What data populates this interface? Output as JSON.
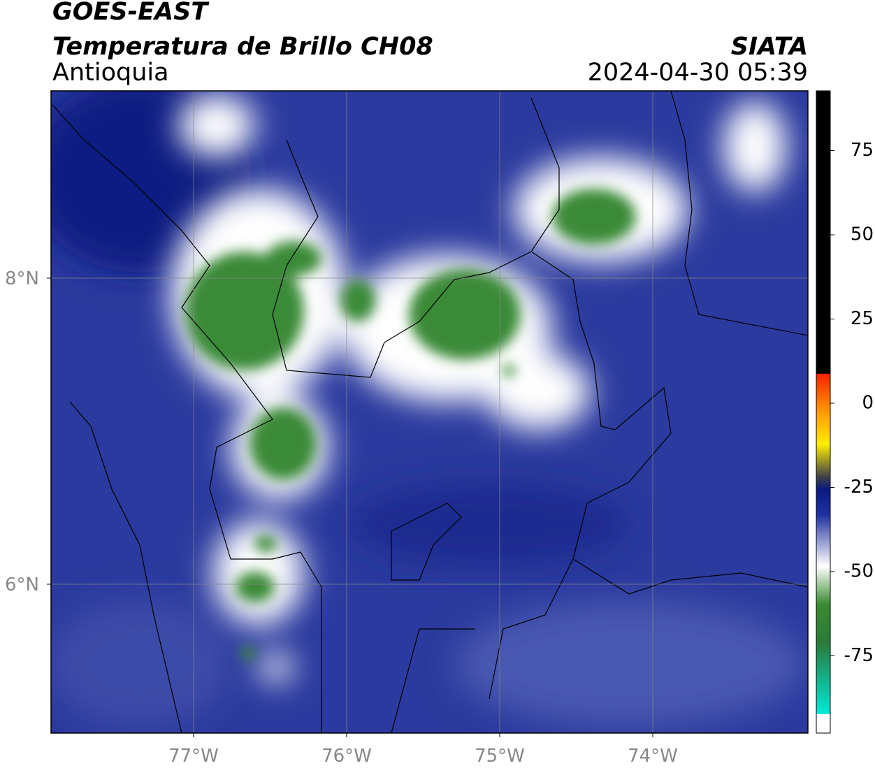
{
  "header": {
    "title": "GOES-EAST",
    "subtitle": "Temperatura de Brillo CH08",
    "region": "Antioquia",
    "source": "SIATA",
    "datetime": "2024-04-30 05:39"
  },
  "map": {
    "longitude_labels": [
      "77°W",
      "76°W",
      "75°W",
      "74°W"
    ],
    "latitude_labels": [
      "8°N",
      "6°N"
    ]
  },
  "colorbar": {
    "ticks": [
      75,
      50,
      25,
      0,
      -25,
      -50,
      -75
    ]
  }
}
